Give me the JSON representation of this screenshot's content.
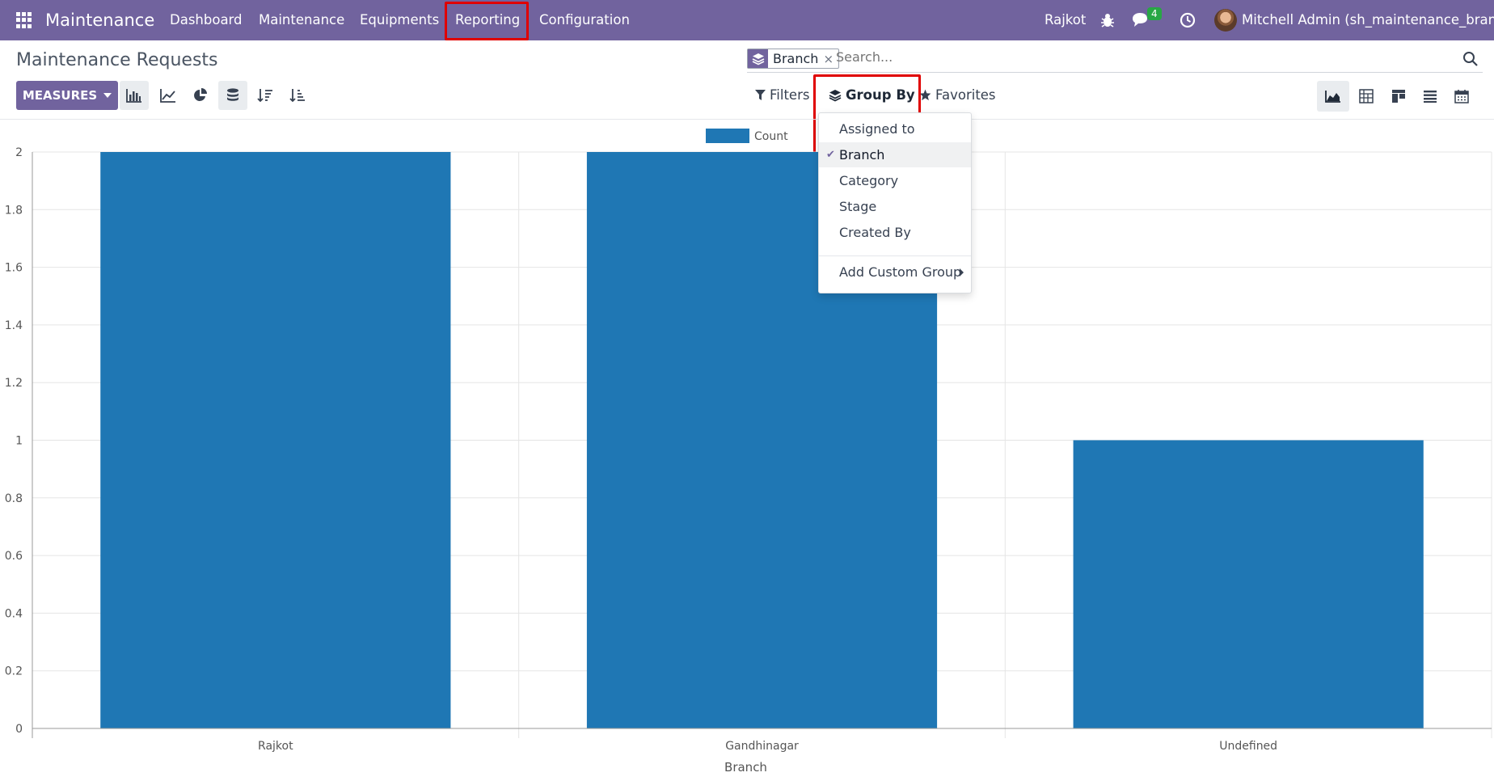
{
  "navbar": {
    "brand": "Maintenance",
    "menu": [
      "Dashboard",
      "Maintenance",
      "Equipments",
      "Reporting",
      "Configuration"
    ],
    "highlighted_menu": "Reporting",
    "company": "Rajkot",
    "messages_count": "4",
    "user": "Mitchell Admin (sh_maintenance_bran…",
    "icons": [
      "apps-grid-icon",
      "bug-icon",
      "chat-icon",
      "clock-icon"
    ]
  },
  "control_panel": {
    "title": "Maintenance Requests",
    "search": {
      "facet_label": "Branch",
      "facet_icon": "layers-icon",
      "placeholder": "Search..."
    },
    "measures_label": "MEASURES",
    "filters_label": "Filters",
    "group_by_label": "Group By",
    "favorites_label": "Favorites",
    "chart_tools": [
      "bar-chart-icon",
      "line-chart-icon",
      "pie-chart-icon",
      "stacked-icon",
      "sort-desc-icon",
      "sort-asc-icon"
    ],
    "views": [
      "graph-view-icon",
      "pivot-view-icon",
      "kanban-view-icon",
      "list-view-icon",
      "calendar-view-icon"
    ]
  },
  "group_by_menu": {
    "items": [
      "Assigned to",
      "Branch",
      "Category",
      "Stage",
      "Created By"
    ],
    "selected": "Branch",
    "custom_group_label": "Add Custom Group"
  },
  "chart_data": {
    "type": "bar",
    "categories": [
      "Rajkot",
      "Gandhinagar",
      "Undefined"
    ],
    "series": [
      {
        "name": "Count",
        "values": [
          2,
          2,
          1
        ],
        "color": "#1f77b4"
      }
    ],
    "xlabel": "Branch",
    "ylabel": "",
    "ylim": [
      0,
      2
    ],
    "yticks": [
      "0",
      "0.2",
      "0.4",
      "0.6",
      "0.8",
      "1",
      "1.2",
      "1.4",
      "1.6",
      "1.8",
      "2"
    ],
    "grid": true,
    "legend_position": "top-center"
  }
}
